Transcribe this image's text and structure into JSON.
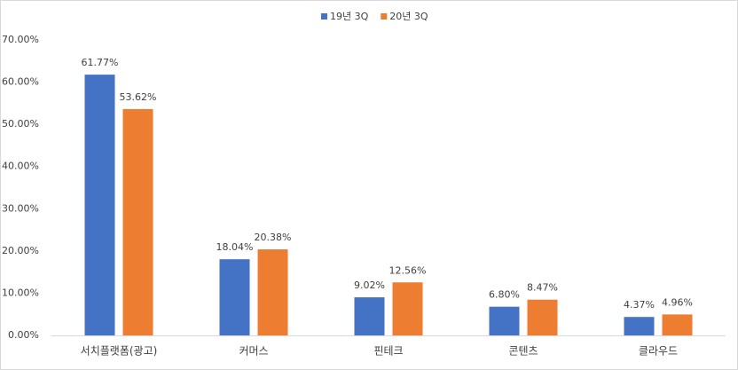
{
  "chart_data": {
    "type": "bar",
    "categories": [
      "서치플랫폼(광고)",
      "커머스",
      "핀테크",
      "콘텐츠",
      "클라우드"
    ],
    "series": [
      {
        "name": "19년 3Q",
        "color": "#4472c4",
        "values": [
          61.77,
          18.04,
          9.02,
          6.8,
          4.37
        ],
        "value_labels": [
          "61.77%",
          "18.04%",
          "9.02%",
          "6.80%",
          "4.37%"
        ]
      },
      {
        "name": "20년 3Q",
        "color": "#ed7d31",
        "values": [
          53.62,
          20.38,
          12.56,
          8.47,
          4.96
        ],
        "value_labels": [
          "53.62%",
          "20.38%",
          "12.56%",
          "8.47%",
          "4.96%"
        ]
      }
    ],
    "ylim": [
      0,
      70
    ],
    "yticks": [
      {
        "value": 0,
        "label": "0.00%"
      },
      {
        "value": 10,
        "label": "10.00%"
      },
      {
        "value": 20,
        "label": "20.00%"
      },
      {
        "value": 30,
        "label": "30.00%"
      },
      {
        "value": 40,
        "label": "40.00%"
      },
      {
        "value": 50,
        "label": "50.00%"
      },
      {
        "value": 60,
        "label": "60.00%"
      },
      {
        "value": 70,
        "label": "70.00%"
      }
    ],
    "grid": false,
    "legend": "top"
  }
}
